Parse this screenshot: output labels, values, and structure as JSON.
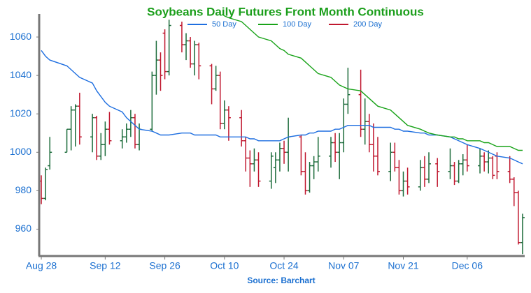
{
  "chart_data": {
    "type": "ohlc",
    "title": "Soybeans Daily Futures Front Month Continuous",
    "source": "Source: Barchart",
    "x": [
      0,
      1,
      2,
      6,
      7,
      8,
      9,
      12,
      13,
      14,
      15,
      16,
      19,
      20,
      21,
      22,
      23,
      26,
      27,
      28,
      29,
      30,
      33,
      34,
      35,
      36,
      37,
      40,
      41,
      42,
      43,
      44,
      47,
      48,
      49,
      50,
      51,
      54,
      55,
      56,
      57,
      58,
      61,
      62,
      63,
      64,
      65,
      68,
      69,
      70,
      71,
      72,
      75,
      76,
      77,
      78,
      79,
      82,
      83,
      84,
      85,
      86,
      89,
      90,
      91,
      93,
      96,
      97,
      98,
      99,
      100,
      103,
      104,
      105,
      106,
      107,
      110,
      111,
      112,
      113
    ],
    "open": [
      985,
      976,
      993,
      1000,
      1012,
      1022,
      1024,
      1008,
      1018,
      998,
      1004,
      1012,
      1006,
      1008,
      1012,
      1018,
      1004,
      1012,
      1040,
      1048,
      1062,
      1042,
      1066,
      1056,
      1058,
      1046,
      1056,
      1045,
      1033,
      1040,
      1015,
      1022,
      1018,
      1006,
      997,
      994,
      996,
      985,
      992,
      996,
      1002,
      1000,
      1008,
      990,
      980,
      993,
      995,
      998,
      1005,
      1000,
      1005,
      1025,
      1030,
      1012,
      1016,
      1004,
      998,
      990,
      1000,
      992,
      980,
      985,
      982,
      992,
      986,
      994,
      990,
      993,
      985,
      994,
      996,
      993,
      998,
      995,
      997,
      998,
      990,
      986,
      979,
      953
    ],
    "high": [
      988,
      992,
      1008,
      1012,
      1024,
      1025,
      1031,
      1020,
      1019,
      1010,
      1016,
      1021,
      1012,
      1015,
      1022,
      1020,
      1015,
      1042,
      1058,
      1052,
      1064,
      1069,
      1068,
      1062,
      1060,
      1058,
      1057,
      1046,
      1045,
      1042,
      1027,
      1024,
      1022,
      1008,
      1001,
      1002,
      1000,
      1000,
      1000,
      1005,
      1006,
      1018,
      1009,
      1000,
      995,
      998,
      1008,
      1008,
      1010,
      1010,
      1028,
      1044,
      1043,
      1028,
      1020,
      1015,
      1008,
      1005,
      1005,
      996,
      990,
      992,
      996,
      998,
      1000,
      997,
      1002,
      995,
      996,
      999,
      1004,
      1002,
      1000,
      1001,
      998,
      1000,
      998,
      987,
      980,
      968
    ],
    "low": [
      973,
      975,
      991,
      1000,
      1001,
      1003,
      1004,
      1000,
      996,
      996,
      998,
      1004,
      1002,
      1005,
      1008,
      1002,
      1001,
      1011,
      1030,
      1032,
      1038,
      1040,
      1052,
      1048,
      1044,
      1040,
      1038,
      1025,
      1032,
      1012,
      1012,
      1006,
      1003,
      990,
      982,
      990,
      982,
      981,
      984,
      990,
      994,
      990,
      988,
      978,
      979,
      986,
      990,
      992,
      995,
      986,
      1000,
      1020,
      1008,
      1004,
      1000,
      990,
      988,
      985,
      990,
      978,
      977,
      978,
      980,
      982,
      984,
      982,
      986,
      983,
      984,
      988,
      990,
      989,
      990,
      989,
      986,
      986,
      984,
      972,
      952,
      947
    ],
    "close": [
      976,
      991,
      1000,
      1012,
      1022,
      1024,
      1008,
      1018,
      998,
      1004,
      1012,
      1006,
      1008,
      1012,
      1018,
      1004,
      1012,
      1040,
      1048,
      1040,
      1042,
      1066,
      1056,
      1058,
      1046,
      1056,
      1045,
      1033,
      1040,
      1015,
      1022,
      1018,
      1006,
      997,
      994,
      996,
      985,
      998,
      996,
      1002,
      1000,
      1008,
      990,
      980,
      993,
      995,
      998,
      1005,
      1000,
      1005,
      1025,
      1030,
      1012,
      1016,
      1004,
      998,
      990,
      1000,
      992,
      980,
      985,
      982,
      992,
      986,
      994,
      990,
      993,
      985,
      994,
      996,
      993,
      998,
      995,
      997,
      988,
      990,
      986,
      979,
      953,
      966
    ],
    "up_color": "#1b6b3a",
    "down_color": "#c0182f",
    "series": [
      {
        "name": "50 Day",
        "color": "#1f6fe0",
        "values": [
          1053,
          1050,
          1048,
          1045,
          1043,
          1041,
          1039,
          1036,
          1032,
          1029,
          1026,
          1024,
          1021,
          1018,
          1016,
          1014,
          1012,
          1011,
          1010,
          1009,
          1009,
          1009,
          1010,
          1010,
          1010,
          1009,
          1009,
          1009,
          1009,
          1008,
          1008,
          1008,
          1008,
          1008,
          1007,
          1007,
          1006,
          1006,
          1006,
          1006,
          1007,
          1008,
          1009,
          1009,
          1010,
          1010,
          1011,
          1011,
          1012,
          1012,
          1013,
          1014,
          1014,
          1014,
          1014,
          1013,
          1013,
          1013,
          1012,
          1012,
          1011,
          1011,
          1010,
          1010,
          1009,
          1009,
          1008,
          1007,
          1006,
          1005,
          1004,
          1002,
          1001,
          1000,
          999,
          998,
          997,
          996,
          995,
          994
        ]
      },
      {
        "name": "100 Day",
        "color": "#19a319",
        "values": [
          null,
          null,
          null,
          null,
          null,
          null,
          null,
          null,
          null,
          null,
          null,
          null,
          null,
          null,
          null,
          null,
          null,
          null,
          null,
          null,
          null,
          null,
          null,
          null,
          null,
          null,
          null,
          null,
          1074,
          1073,
          1071,
          1070,
          1068,
          1066,
          1064,
          1062,
          1060,
          1058,
          1056,
          1054,
          1053,
          1051,
          1049,
          1047,
          1045,
          1043,
          1041,
          1039,
          1037,
          1035,
          1034,
          1033,
          1032,
          1030,
          1028,
          1026,
          1024,
          1022,
          1020,
          1018,
          1016,
          1014,
          1012,
          1011,
          1010,
          1009,
          1008,
          1008,
          1007,
          1007,
          1006,
          1006,
          1005,
          1005,
          1004,
          1003,
          1003,
          1002,
          1001,
          1001
        ]
      },
      {
        "name": "200 Day",
        "color": "#c0182f",
        "values": [
          null,
          null,
          null,
          null,
          null,
          null,
          null,
          null,
          null,
          null,
          null,
          null,
          null,
          null,
          null,
          null,
          null,
          null,
          null,
          null,
          null,
          null,
          null,
          null,
          null,
          null,
          null,
          null,
          null,
          null,
          null,
          null,
          null,
          null,
          null,
          null,
          null,
          null,
          null,
          null,
          null,
          null,
          null,
          null,
          null,
          null,
          null,
          null,
          null,
          null,
          null,
          null,
          null,
          null,
          null,
          null,
          null,
          null,
          null,
          null,
          null,
          null,
          null,
          null,
          null,
          null,
          null,
          null,
          null,
          null,
          null,
          null,
          null,
          null,
          null,
          null,
          null,
          null,
          null,
          null
        ]
      }
    ],
    "xlim": [
      -0.5,
      113.5
    ],
    "xticks": [
      {
        "value": 0,
        "label": "Aug 28"
      },
      {
        "value": 15,
        "label": "Sep 12"
      },
      {
        "value": 29,
        "label": "Sep 26"
      },
      {
        "value": 43,
        "label": "Oct 10"
      },
      {
        "value": 57,
        "label": "Oct 24"
      },
      {
        "value": 71,
        "label": "Nov 07"
      },
      {
        "value": 85,
        "label": "Nov 21"
      },
      {
        "value": 100,
        "label": "Dec 06"
      }
    ],
    "ylim": [
      946,
      1072
    ],
    "yticks": [
      960,
      980,
      1000,
      1020,
      1040,
      1060
    ],
    "title_color": "#1a9e1a",
    "label_color": "#1a6fd0",
    "legend": "top"
  }
}
